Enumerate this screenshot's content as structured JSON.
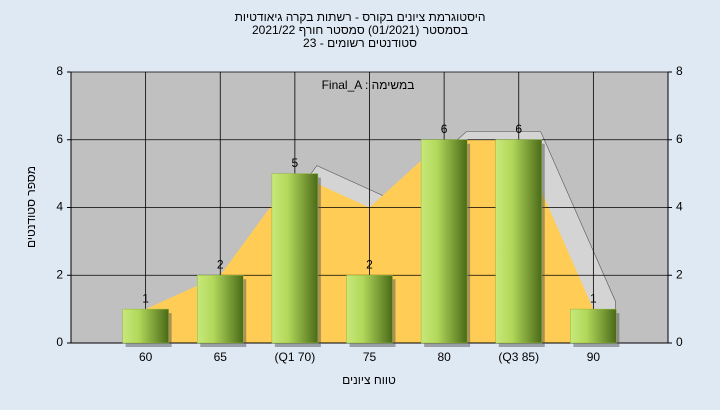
{
  "chart_data": {
    "type": "bar",
    "title": "היסטוגרמת ציונים בקורס - רשתות בקרה גיאודטיות",
    "subtitle": "בסמסטר  (01/2021)  סמסטר חורף 2021/22",
    "subtitle2": "23 - סטודנטים רשומים",
    "annotation": "Final_A : במשימה",
    "ylabel": "מספר סטודנטים",
    "xlabel": "טווח ציונים",
    "categories": [
      "60",
      "65",
      "(Q1 70)",
      "75",
      "80",
      "(Q3 85)",
      "90"
    ],
    "values": [
      1,
      2,
      5,
      2,
      6,
      6,
      1
    ],
    "color": "#8fb83a",
    "area_values": [
      1,
      2,
      5,
      4,
      6,
      6,
      1
    ],
    "area_color": "#ffcc55",
    "ylim": [
      0,
      8
    ],
    "yticks": [
      0,
      2,
      4,
      6,
      8
    ],
    "grid": true
  }
}
